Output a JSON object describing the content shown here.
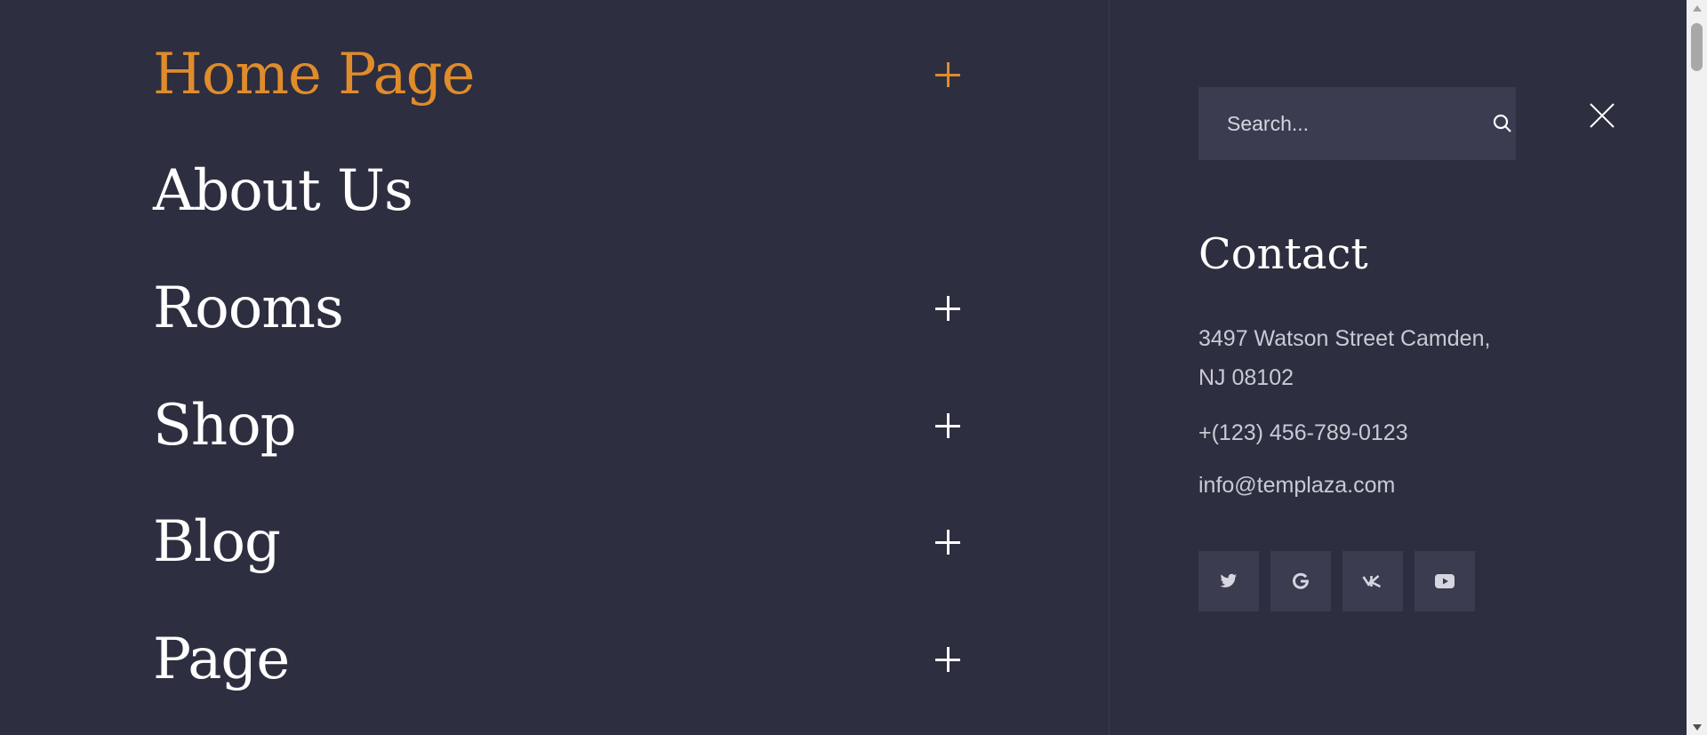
{
  "menu": {
    "items": [
      {
        "label": "Home Page",
        "active": true,
        "has_submenu": true
      },
      {
        "label": "About Us",
        "active": false,
        "has_submenu": false
      },
      {
        "label": "Rooms",
        "active": false,
        "has_submenu": true
      },
      {
        "label": "Shop",
        "active": false,
        "has_submenu": true
      },
      {
        "label": "Blog",
        "active": false,
        "has_submenu": true
      },
      {
        "label": "Page",
        "active": false,
        "has_submenu": true
      }
    ]
  },
  "search": {
    "placeholder": "Search...",
    "icon": "search-icon"
  },
  "close": {
    "icon": "close-icon"
  },
  "contact": {
    "title": "Contact",
    "address": "3497 Watson Street Camden, NJ 08102",
    "phone": "+(123) 456-789-0123",
    "email": "info@templaza.com"
  },
  "social": [
    {
      "name": "twitter",
      "icon": "twitter-icon"
    },
    {
      "name": "google",
      "icon": "google-icon"
    },
    {
      "name": "vk",
      "icon": "vk-icon"
    },
    {
      "name": "youtube",
      "icon": "youtube-icon"
    }
  ],
  "colors": {
    "background": "#2d2e3f",
    "accent": "#e08c2b",
    "panel": "#3b3c50",
    "text": "#ffffff"
  }
}
